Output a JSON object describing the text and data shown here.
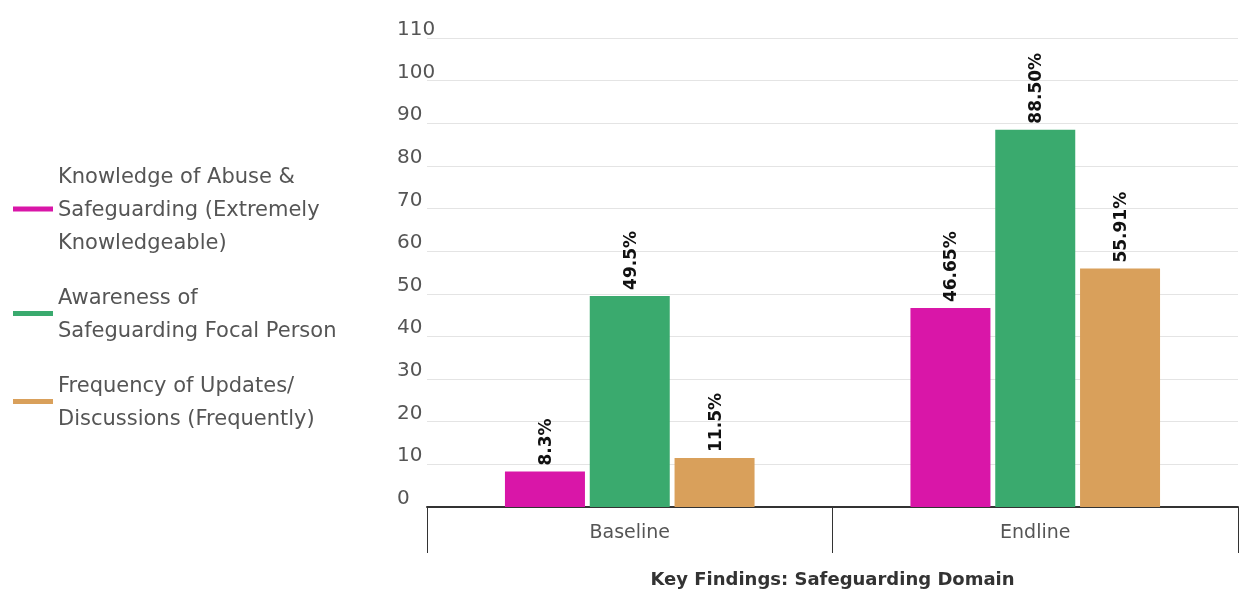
{
  "chart_data": {
    "type": "bar",
    "xlabel": "Key Findings: Safeguarding Domain",
    "categories": [
      "Baseline",
      "Endline"
    ],
    "series": [
      {
        "name": "Knowledge of Abuse & Safeguarding (Extremely Knowledgeable)",
        "color": "#d916a8",
        "values": [
          8.3,
          46.65
        ],
        "value_labels": [
          "8.3%",
          "46.65%"
        ]
      },
      {
        "name": "Awareness of Safeguarding Focal Person",
        "color": "#3aaa6e",
        "values": [
          49.5,
          88.5
        ],
        "value_labels": [
          "49.5%",
          "88.50%"
        ]
      },
      {
        "name": "Frequency of Updates/Discussions (Frequently)",
        "color": "#d9a05b",
        "values": [
          11.5,
          55.91
        ],
        "value_labels": [
          "11.5%",
          "55.91%"
        ]
      }
    ],
    "ylim": [
      0,
      110
    ],
    "yticks": [
      0,
      10,
      20,
      30,
      40,
      50,
      60,
      70,
      80,
      90,
      100,
      110
    ],
    "grid": "y",
    "legend": "left"
  }
}
